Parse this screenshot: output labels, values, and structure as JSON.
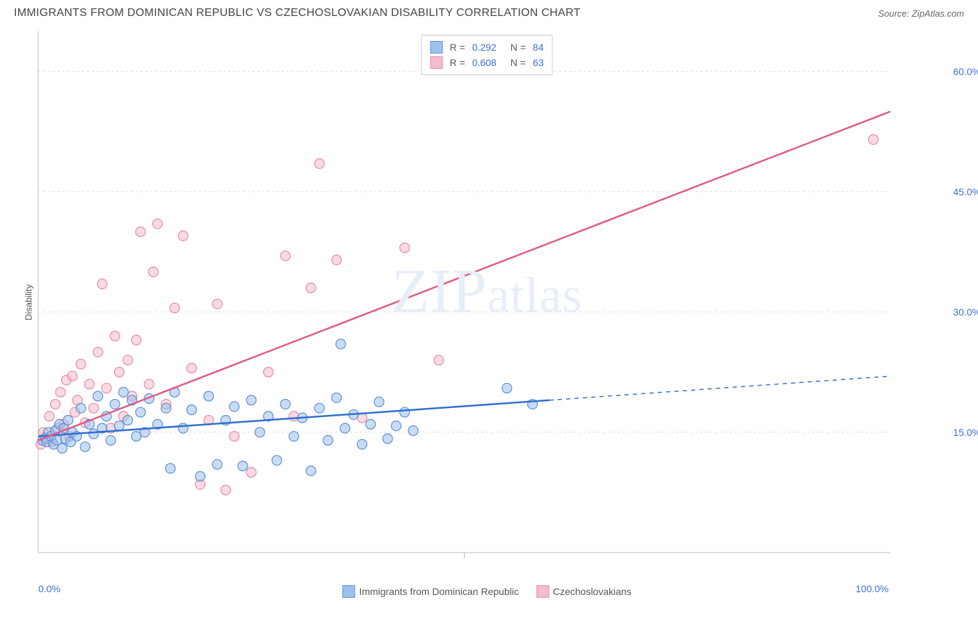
{
  "title": "IMMIGRANTS FROM DOMINICAN REPUBLIC VS CZECHOSLOVAKIAN DISABILITY CORRELATION CHART",
  "source_label": "Source: ZipAtlas.com",
  "watermark": "ZIPatlas",
  "y_axis_label": "Disability",
  "chart": {
    "type": "scatter",
    "xlim": [
      0,
      100
    ],
    "ylim": [
      0,
      65
    ],
    "x_ticks": [
      0,
      50,
      100
    ],
    "x_tick_labels": [
      "0.0%",
      "",
      "100.0%"
    ],
    "y_ticks": [
      15,
      30,
      45,
      60
    ],
    "y_tick_labels": [
      "15.0%",
      "30.0%",
      "45.0%",
      "60.0%"
    ],
    "grid_color": "#d8d8d8",
    "axis_color": "#bbbbbb",
    "background_color": "#ffffff",
    "marker_radius": 7,
    "marker_opacity": 0.55,
    "line_width": 2.5
  },
  "series": [
    {
      "name": "Immigrants from Dominican Republic",
      "color_fill": "#9fc0ec",
      "color_stroke": "#5a8fd8",
      "line_color": "#2f6fd0",
      "r": "0.292",
      "n": "84",
      "trend": {
        "x1": 0,
        "y1": 14.5,
        "x2": 60,
        "y2": 19.0,
        "x_solid_end": 60,
        "x_dash_end": 100,
        "y_dash_end": 22.0
      },
      "points": [
        [
          0.5,
          14
        ],
        [
          0.8,
          14.3
        ],
        [
          1,
          13.8
        ],
        [
          1.2,
          15
        ],
        [
          1.5,
          14.5
        ],
        [
          1.8,
          13.5
        ],
        [
          2,
          15.2
        ],
        [
          2.2,
          14
        ],
        [
          2.5,
          16
        ],
        [
          2.8,
          13
        ],
        [
          3,
          15.5
        ],
        [
          3.2,
          14.2
        ],
        [
          3.5,
          16.5
        ],
        [
          3.8,
          13.8
        ],
        [
          4,
          15
        ],
        [
          4.5,
          14.5
        ],
        [
          5,
          18
        ],
        [
          5.5,
          13.2
        ],
        [
          6,
          16
        ],
        [
          6.5,
          14.8
        ],
        [
          7,
          19.5
        ],
        [
          7.5,
          15.5
        ],
        [
          8,
          17
        ],
        [
          8.5,
          14
        ],
        [
          9,
          18.5
        ],
        [
          9.5,
          15.8
        ],
        [
          10,
          20
        ],
        [
          10.5,
          16.5
        ],
        [
          11,
          19
        ],
        [
          11.5,
          14.5
        ],
        [
          12,
          17.5
        ],
        [
          12.5,
          15
        ],
        [
          13,
          19.2
        ],
        [
          14,
          16
        ],
        [
          15,
          18
        ],
        [
          15.5,
          10.5
        ],
        [
          16,
          20
        ],
        [
          17,
          15.5
        ],
        [
          18,
          17.8
        ],
        [
          19,
          9.5
        ],
        [
          20,
          19.5
        ],
        [
          21,
          11
        ],
        [
          22,
          16.5
        ],
        [
          23,
          18.2
        ],
        [
          24,
          10.8
        ],
        [
          25,
          19
        ],
        [
          26,
          15
        ],
        [
          27,
          17
        ],
        [
          28,
          11.5
        ],
        [
          29,
          18.5
        ],
        [
          30,
          14.5
        ],
        [
          31,
          16.8
        ],
        [
          32,
          10.2
        ],
        [
          33,
          18
        ],
        [
          34,
          14
        ],
        [
          35,
          19.3
        ],
        [
          35.5,
          26
        ],
        [
          36,
          15.5
        ],
        [
          37,
          17.2
        ],
        [
          38,
          13.5
        ],
        [
          39,
          16
        ],
        [
          40,
          18.8
        ],
        [
          41,
          14.2
        ],
        [
          42,
          15.8
        ],
        [
          43,
          17.5
        ],
        [
          44,
          15.2
        ],
        [
          55,
          20.5
        ],
        [
          58,
          18.5
        ]
      ]
    },
    {
      "name": "Czechoslovakians",
      "color_fill": "#f5bccb",
      "color_stroke": "#e78aa5",
      "line_color": "#e15a84",
      "r": "0.608",
      "n": "63",
      "trend": {
        "x1": 0,
        "y1": 14.0,
        "x2": 100,
        "y2": 55.0,
        "x_solid_end": 100
      },
      "points": [
        [
          0.3,
          13.5
        ],
        [
          0.6,
          15
        ],
        [
          1,
          14.2
        ],
        [
          1.3,
          17
        ],
        [
          1.6,
          13.8
        ],
        [
          2,
          18.5
        ],
        [
          2.3,
          15.5
        ],
        [
          2.6,
          20
        ],
        [
          3,
          16
        ],
        [
          3.3,
          21.5
        ],
        [
          3.6,
          14.5
        ],
        [
          4,
          22
        ],
        [
          4.3,
          17.5
        ],
        [
          4.6,
          19
        ],
        [
          5,
          23.5
        ],
        [
          5.5,
          16.2
        ],
        [
          6,
          21
        ],
        [
          6.5,
          18
        ],
        [
          7,
          25
        ],
        [
          7.5,
          33.5
        ],
        [
          8,
          20.5
        ],
        [
          8.5,
          15.5
        ],
        [
          9,
          27
        ],
        [
          9.5,
          22.5
        ],
        [
          10,
          17
        ],
        [
          10.5,
          24
        ],
        [
          11,
          19.5
        ],
        [
          11.5,
          26.5
        ],
        [
          12,
          40
        ],
        [
          13,
          21
        ],
        [
          13.5,
          35
        ],
        [
          14,
          41
        ],
        [
          15,
          18.5
        ],
        [
          16,
          30.5
        ],
        [
          17,
          39.5
        ],
        [
          18,
          23
        ],
        [
          19,
          8.5
        ],
        [
          20,
          16.5
        ],
        [
          21,
          31
        ],
        [
          22,
          7.8
        ],
        [
          23,
          14.5
        ],
        [
          25,
          10
        ],
        [
          27,
          22.5
        ],
        [
          29,
          37
        ],
        [
          30,
          17
        ],
        [
          32,
          33
        ],
        [
          33,
          48.5
        ],
        [
          35,
          36.5
        ],
        [
          38,
          16.8
        ],
        [
          43,
          38
        ],
        [
          47,
          24
        ],
        [
          98,
          51.5
        ]
      ]
    }
  ],
  "legend_bottom": [
    {
      "label": "Immigrants from Dominican Republic",
      "fill": "#9fc0ec",
      "stroke": "#5a8fd8"
    },
    {
      "label": "Czechoslovakians",
      "fill": "#f5bccb",
      "stroke": "#e78aa5"
    }
  ]
}
